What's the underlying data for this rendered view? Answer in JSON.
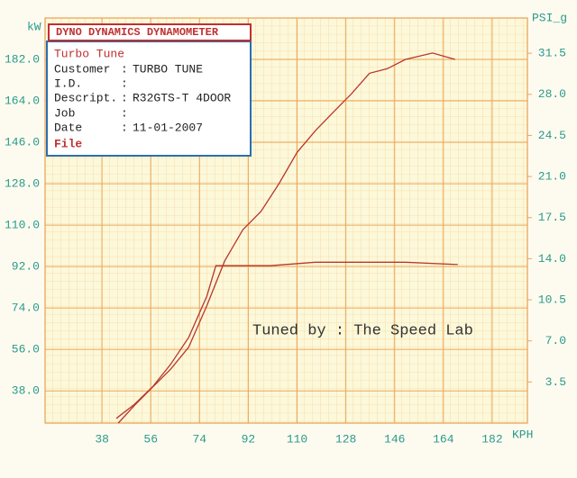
{
  "chart_data": {
    "type": "line",
    "title": "DYNO DYNAMICS DYNAMOMETER",
    "annotation": "Tuned by : The Speed Lab",
    "ylabel": "kW",
    "y2label": "PSI_g",
    "xlabel": "KPH",
    "xlim": [
      17,
      195
    ],
    "xticks": [
      38,
      56,
      74,
      92,
      110,
      128,
      146,
      164,
      182
    ],
    "ylim": [
      24,
      200
    ],
    "yticks": [
      {
        "value": 38,
        "label": "38.0"
      },
      {
        "value": 56,
        "label": "56.0"
      },
      {
        "value": 74,
        "label": "74.0"
      },
      {
        "value": 92,
        "label": "92.0"
      },
      {
        "value": 110,
        "label": "110.0"
      },
      {
        "value": 128,
        "label": "128.0"
      },
      {
        "value": 146,
        "label": "146.0"
      },
      {
        "value": 164,
        "label": "164.0"
      },
      {
        "value": 182,
        "label": "182.0"
      }
    ],
    "y2lim": [
      0,
      34.5
    ],
    "y2ticks": [
      3.5,
      {
        "value": 7,
        "label": "7.0"
      },
      10.5,
      {
        "value": 14,
        "label": "14.0"
      },
      17.5,
      {
        "value": 21,
        "label": "21.0"
      },
      24.5,
      {
        "value": 28,
        "label": "28.0"
      },
      31.5
    ],
    "grid": true,
    "series": [
      {
        "color": "#b8372e",
        "axis": "y",
        "x": [
          44,
          50,
          56.7,
          63.3,
          70,
          76.7,
          83.3,
          90,
          96.7,
          103.3,
          110,
          116.7,
          123.3,
          130,
          136.7,
          143.3,
          150,
          160,
          168.3
        ],
        "values": [
          24,
          31.7,
          39.6,
          47.4,
          57,
          75,
          94.5,
          108,
          116,
          128,
          141.6,
          151,
          159,
          167,
          176,
          178,
          182,
          184.8,
          182
        ]
      },
      {
        "color": "#b8372e",
        "axis": "y2",
        "x": [
          43.3,
          50,
          56.7,
          63.3,
          70,
          76.7,
          80,
          86.7,
          100,
          116.7,
          133.3,
          150,
          169.3
        ],
        "values": [
          0.4,
          1.6,
          3.1,
          5,
          7.3,
          10.8,
          13.4,
          13.4,
          13.4,
          13.7,
          13.7,
          13.7,
          13.5
        ]
      }
    ]
  },
  "info_box": {
    "heading": "Turbo Tune",
    "rows": [
      {
        "label": "Customer",
        "sep": ":",
        "value": "TURBO TUNE"
      },
      {
        "label": "I.D.",
        "sep": ":"
      },
      {
        "label": "Descript.",
        "sep": ":",
        "value": "R32GTS-T 4DOOR"
      },
      {
        "label": "Job",
        "sep": ":"
      },
      {
        "label": "Date",
        "sep": ":",
        "value": "11-01-2007"
      },
      {
        "label": "File"
      }
    ]
  }
}
